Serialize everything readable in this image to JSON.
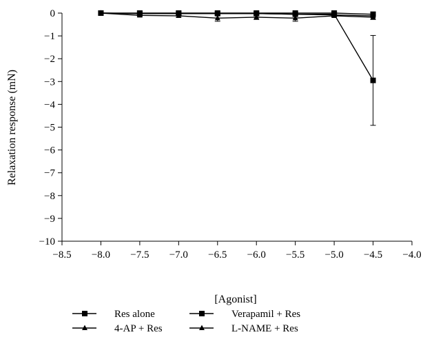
{
  "chart_data": {
    "type": "line",
    "title": "",
    "xlabel": "[Agonist]",
    "ylabel": "Relaxation response (mN)",
    "xlim": [
      -8.5,
      -4.0
    ],
    "ylim": [
      -10,
      0
    ],
    "xticks": [
      "-8.5",
      "-8.0",
      "-7.5",
      "-7.0",
      "-6.5",
      "-6.0",
      "-5.5",
      "-5.0",
      "-4.5",
      "-4.0"
    ],
    "yticks": [
      "0",
      "-1",
      "-2",
      "-3",
      "-4",
      "-5",
      "-6",
      "-7",
      "-8",
      "-9",
      "-10"
    ],
    "grid": false,
    "legend_position": "bottom",
    "series": [
      {
        "name": "Res alone",
        "marker": "square",
        "x": [
          -8.0,
          -7.5,
          -7.0,
          -6.5,
          -6.0,
          -5.5,
          -5.0,
          -4.5
        ],
        "y": [
          0,
          0,
          0,
          0,
          0,
          0,
          0,
          -0.05
        ],
        "err": [
          0,
          0,
          0,
          0,
          0,
          0,
          0,
          0
        ]
      },
      {
        "name": "Verapamil + Res",
        "marker": "square",
        "x": [
          -8.0,
          -7.5,
          -7.0,
          -6.5,
          -6.0,
          -5.5,
          -5.0,
          -4.5
        ],
        "y": [
          0,
          -0.02,
          -0.02,
          -0.02,
          -0.02,
          -0.05,
          -0.05,
          -2.95
        ],
        "err": [
          0,
          0,
          0,
          0,
          0,
          0,
          0,
          1.97
        ]
      },
      {
        "name": "4-AP + Res",
        "marker": "triangle",
        "x": [
          -8.0,
          -7.5,
          -7.0,
          -6.5,
          -6.0,
          -5.5,
          -5.0,
          -4.5
        ],
        "y": [
          0,
          -0.1,
          -0.12,
          -0.22,
          -0.18,
          -0.22,
          -0.12,
          -0.18
        ],
        "err": [
          0,
          0.05,
          0.06,
          0.14,
          0.1,
          0.14,
          0.05,
          0.1
        ]
      },
      {
        "name": "L-NAME + Res",
        "marker": "triangle",
        "x": [
          -8.0,
          -7.5,
          -7.0,
          -6.5,
          -6.0,
          -5.5,
          -5.0,
          -4.5
        ],
        "y": [
          0,
          -0.02,
          -0.02,
          -0.02,
          -0.02,
          -0.05,
          -0.08,
          -0.12
        ],
        "err": [
          0,
          0,
          0,
          0,
          0,
          0,
          0,
          0
        ]
      }
    ]
  }
}
